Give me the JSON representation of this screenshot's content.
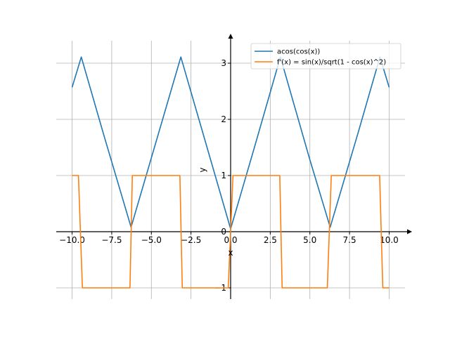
{
  "chart_data": {
    "type": "line",
    "title": "",
    "xlabel": "x",
    "ylabel": "y",
    "xlim": [
      -11.0,
      11.0
    ],
    "ylim": [
      -1.2,
      3.4
    ],
    "xticks": [
      -10.0,
      -7.5,
      -5.0,
      -2.5,
      0.0,
      2.5,
      5.0,
      7.5,
      10.0
    ],
    "xtick_labels": [
      "−10.0",
      "−7.5",
      "−5.0",
      "−2.5",
      "0.0",
      "2.5",
      "5.0",
      "7.5",
      "10.0"
    ],
    "yticks": [
      -1,
      0,
      1,
      2,
      3
    ],
    "ytick_labels": [
      "−1",
      "0",
      "1",
      "2",
      "3"
    ],
    "grid": true,
    "legend": "top-right",
    "series": [
      {
        "name": "acos(cos(x))",
        "color": "#1f77b4",
        "x": [
          -10.0,
          -9.42,
          -8.0,
          -6.28,
          -4.0,
          -3.14,
          -2.0,
          0.0,
          1.5,
          3.14,
          5.0,
          6.28,
          8.0,
          9.42,
          10.0
        ],
        "y": [
          2.57,
          3.11,
          1.72,
          0.08,
          2.28,
          3.11,
          2.0,
          0.05,
          1.5,
          3.11,
          1.28,
          0.08,
          1.72,
          3.11,
          2.57
        ]
      },
      {
        "name": "f'(x) = sin(x)/sqrt(1 - cos(x)^2)",
        "color": "#ff7f0e",
        "x": [
          -10.0,
          -9.6,
          -9.35,
          -6.35,
          -6.2,
          -3.2,
          -3.05,
          -0.15,
          0.0,
          0.15,
          3.1,
          3.25,
          6.1,
          6.35,
          9.4,
          9.6,
          10.0
        ],
        "y": [
          1,
          1,
          -1,
          -1,
          1,
          1,
          -1,
          -1,
          0,
          1,
          1,
          -1,
          -1,
          1,
          1,
          -1,
          -1
        ]
      }
    ]
  }
}
